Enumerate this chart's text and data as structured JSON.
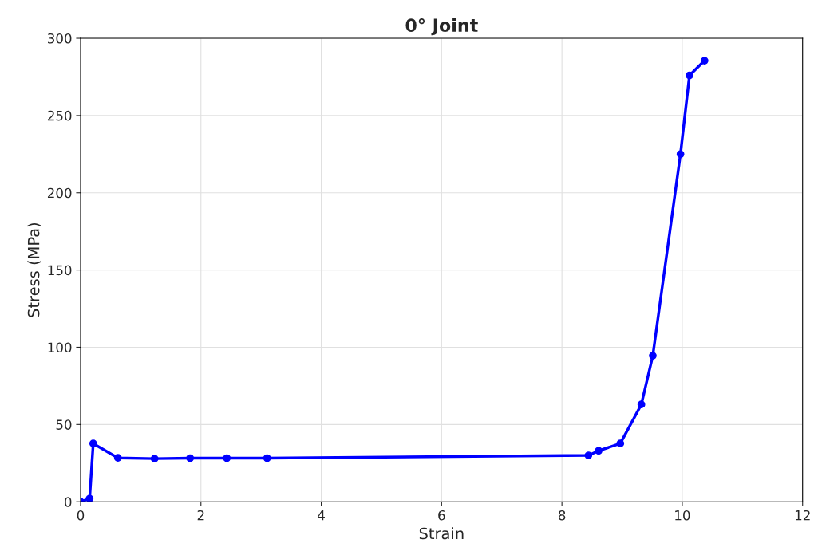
{
  "chart_data": {
    "type": "line",
    "title": "0° Joint",
    "xlabel": "Strain",
    "ylabel": "Stress (MPa)",
    "series": [
      {
        "color": "#0000ff",
        "x": [
          0,
          0.15,
          0.21,
          0.62,
          1.23,
          1.82,
          2.43,
          3.1,
          8.44,
          8.61,
          8.97,
          9.32,
          9.51,
          9.97,
          10.12,
          10.37
        ],
        "values": [
          0,
          2,
          37.7,
          28.4,
          27.9,
          28.2,
          28.2,
          28.2,
          30,
          33,
          37.7,
          63,
          94.5,
          225,
          276,
          285.5
        ]
      }
    ],
    "xlim": [
      0,
      12
    ],
    "xticks": [
      0,
      2,
      4,
      6,
      8,
      10,
      12
    ],
    "ylim": [
      0,
      300
    ],
    "yticks": [
      0,
      50,
      100,
      150,
      200,
      250,
      300
    ],
    "grid": true,
    "marker": "circle",
    "line_style": "solid"
  }
}
